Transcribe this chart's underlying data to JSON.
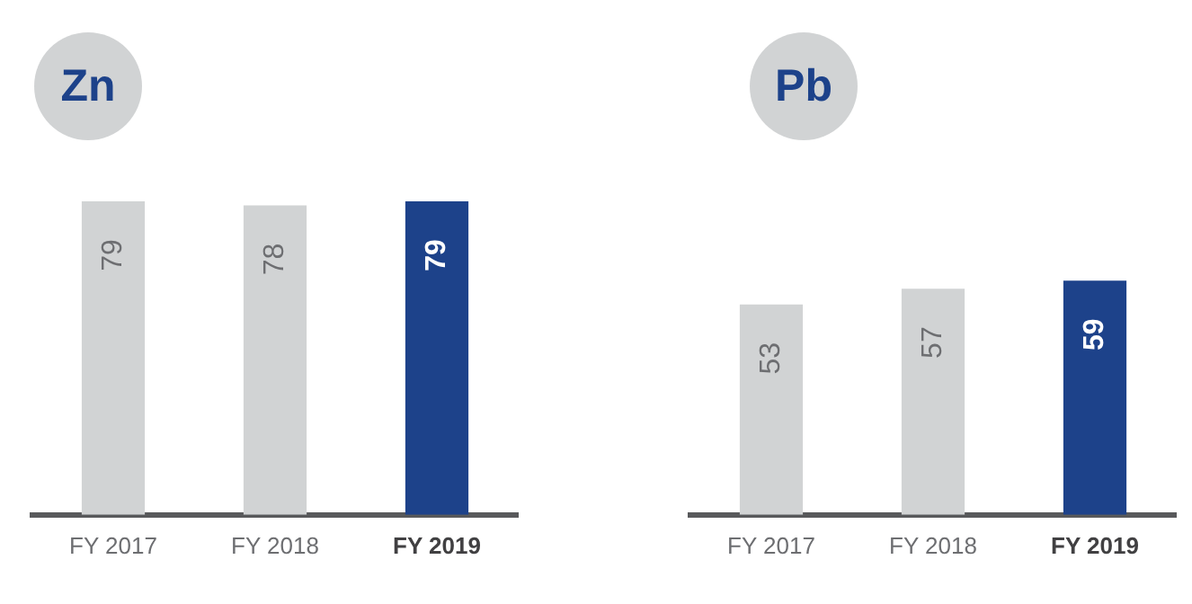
{
  "chart_data": [
    {
      "type": "bar",
      "title": "Zn",
      "categories": [
        "FY 2017",
        "FY 2018",
        "FY 2019"
      ],
      "values": [
        79,
        78,
        79
      ],
      "colors": [
        "#d1d3d4",
        "#d1d3d4",
        "#1d428a"
      ],
      "data_labels": true
    },
    {
      "type": "bar",
      "title": "Pb",
      "categories": [
        "FY 2017",
        "FY 2018",
        "FY 2019"
      ],
      "values": [
        53,
        57,
        59
      ],
      "colors": [
        "#d1d3d4",
        "#d1d3d4",
        "#1d428a"
      ],
      "data_labels": true
    }
  ]
}
